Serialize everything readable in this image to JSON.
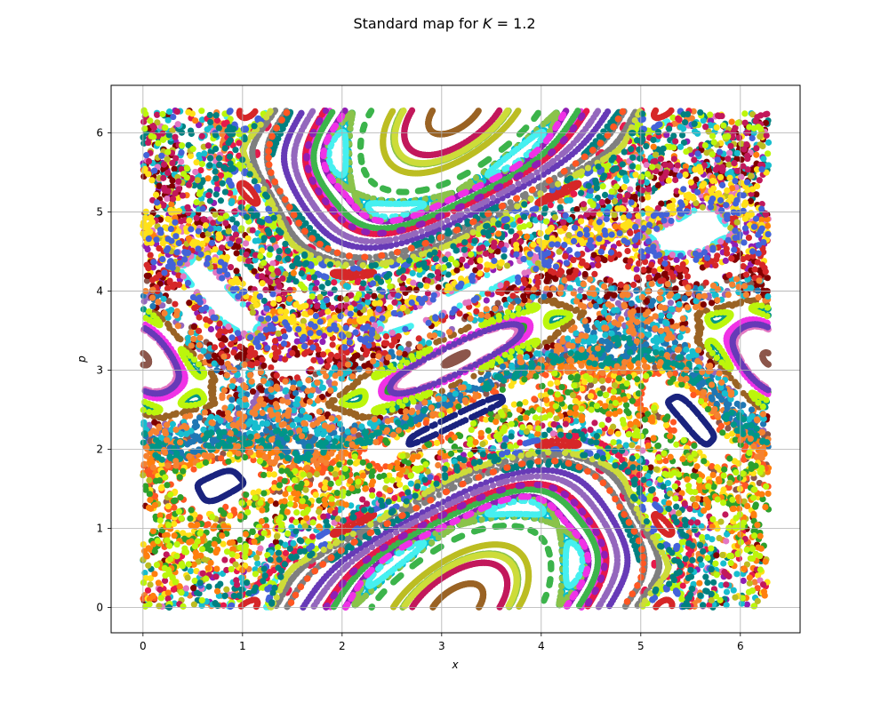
{
  "chart_data": {
    "type": "scatter",
    "title": "Standard map for K = 1.2",
    "title_prefix": "Standard map for ",
    "title_var": "K",
    "title_suffix": " = 1.2",
    "K": 1.2,
    "xlabel": "x",
    "ylabel": "p",
    "xlim": [
      -0.32,
      6.6
    ],
    "ylim": [
      -0.32,
      6.6
    ],
    "data_domain": {
      "x": [
        0,
        6.2832
      ],
      "p": [
        0,
        6.2832
      ]
    },
    "x_ticks": [
      "0",
      "1",
      "2",
      "3",
      "4",
      "5",
      "6"
    ],
    "y_ticks": [
      "0",
      "1",
      "2",
      "3",
      "4",
      "5",
      "6"
    ],
    "grid": true,
    "legend": "none",
    "marker": "filled circle",
    "orbit_count": 70,
    "iterations_per_orbit": 300,
    "palette": [
      "#e6194b",
      "#3cb44b",
      "#ffe119",
      "#4363d8",
      "#f58231",
      "#911eb4",
      "#46f0f0",
      "#f032e6",
      "#bcf60c",
      "#008080",
      "#9a6324",
      "#800000",
      "#1f77b4",
      "#17becf",
      "#2ca02c",
      "#d62728",
      "#9467bd",
      "#8c564b",
      "#e377c2",
      "#7f7f7f",
      "#bcbd22",
      "#ff7f0e",
      "#1a237e",
      "#00bcd4",
      "#8bc34a",
      "#ff5722",
      "#673ab7",
      "#009688",
      "#c2185b",
      "#cddc39"
    ]
  }
}
